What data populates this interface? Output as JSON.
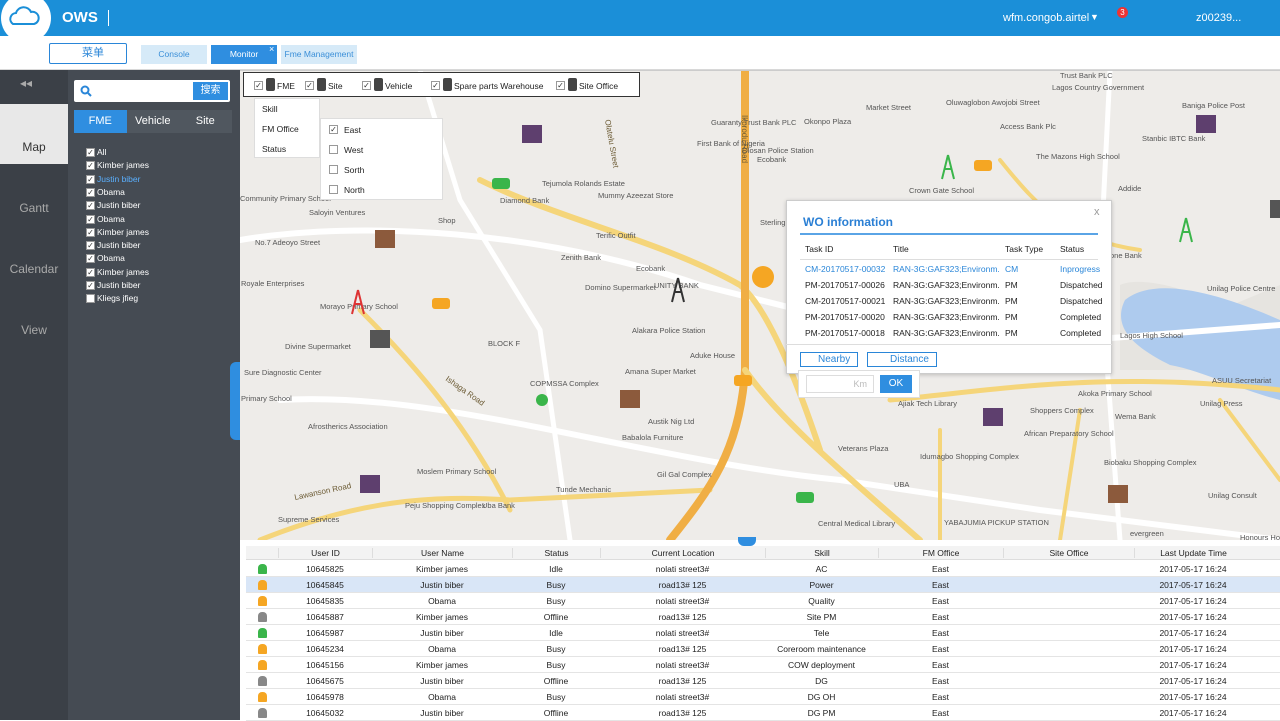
{
  "header": {
    "logo": "OWS",
    "domain": "wfm.congob.airtel",
    "badge": "3",
    "user": "z00239..."
  },
  "toolbar": {
    "menu": "菜单",
    "tabs": [
      "Console",
      "Monitor",
      "Fme Management"
    ],
    "close": "×"
  },
  "nav": [
    "Map",
    "Gantt",
    "Calendar",
    "View"
  ],
  "panel": {
    "search": "搜索",
    "tabs": [
      "FME",
      "Vehicle",
      "Site"
    ],
    "items": [
      {
        "name": "All",
        "checked": true
      },
      {
        "name": "Kimber james",
        "checked": true
      },
      {
        "name": "Justin biber",
        "checked": true
      },
      {
        "name": "Obama",
        "checked": true
      },
      {
        "name": "Justin biber",
        "checked": true
      },
      {
        "name": "Obama",
        "checked": true
      },
      {
        "name": "Kimber james",
        "checked": true
      },
      {
        "name": "Justin biber",
        "checked": true
      },
      {
        "name": "Obama",
        "checked": true
      },
      {
        "name": "Kimber james",
        "checked": true
      },
      {
        "name": "Justin biber",
        "checked": true
      },
      {
        "name": "Kliegs jfieg",
        "checked": false
      }
    ]
  },
  "filters": [
    "FME",
    "Site",
    "Vehicle",
    "Spare parts Warehouse",
    "Site Office"
  ],
  "submenu": [
    "Skill",
    "FM Office",
    "Status"
  ],
  "offices": [
    {
      "name": "East",
      "checked": true
    },
    {
      "name": "West",
      "checked": false
    },
    {
      "name": "Sorth",
      "checked": false
    },
    {
      "name": "North",
      "checked": false
    }
  ],
  "map_labels": [
    "Olosan Police Station",
    "Diamond Bank",
    "Mummy Azeezat Store",
    "Tejumola Rolands Estate",
    "Terific Outfit",
    "Zenith Bank",
    "Ecobank",
    "UNITY BANK",
    "Domino Supermarket",
    "Alakara Police Station",
    "Aduke House",
    "BLOCK F",
    "Amana Super Market",
    "COPMSSA Complex",
    "Austik Nig Ltd",
    "Babalola Furniture",
    "Gil Gal Complex",
    "Tunde Mechanic",
    "Uba Bank",
    "Moslem Primary School",
    "Peju Shopping Complex",
    "Afrostherics Association",
    "Morayo Primary School",
    "Royale Enterprises",
    "No.7 Adeoyo Street",
    "Community Primary School",
    "Saloyin Ventures",
    "Divine Supermarket",
    "Sure Diagnostic Center",
    "Primary School",
    "Supreme Services",
    "Shop",
    "Guaranty Trust Bank PLC",
    "First Bank of Nigeria",
    "Ecobank",
    "Okonpo Plaza",
    "Market Street",
    "Oluwaglobon Awojobi Street",
    "Access Bank Plc",
    "The Mazons High School",
    "Crown Gate School",
    "Trust Bank PLC",
    "Lagos Country Government",
    "Baniga Police Post",
    "Stanbic IBTC Bank",
    "Addide",
    "Sterling",
    "Veterans Plaza",
    "Ajiak Tech Library",
    "Idumagbo Shopping Complex",
    "UBA",
    "Central Medical Library",
    "YABAJUMIA PICKUP STATION",
    "Akoka Primary School",
    "Wema Bank",
    "Shoppers Complex",
    "African Preparatory School",
    "Biobaku Shopping Complex",
    "Unilag Press",
    "ASUU Secretariat",
    "Unilag Consult",
    "evergreen",
    "Honours Hours",
    "Unilag Police Centre",
    "one Bank",
    "Lagos High School",
    "Ikorodu Road",
    "Olatelu Street",
    "Ishaga Road",
    "Lawanson Road"
  ],
  "wo": {
    "title": "WO information",
    "close": "x",
    "headers": [
      "Task ID",
      "Title",
      "Task Type",
      "Status"
    ],
    "rows": [
      [
        "CM-20170517-00032",
        "RAN-3G:GAF323;Environm...",
        "CM",
        "Inprogress"
      ],
      [
        "PM-20170517-00026",
        "RAN-3G:GAF323;Environm...",
        "PM",
        "Dispatched"
      ],
      [
        "CM-20170517-00021",
        "RAN-3G:GAF323;Environm...",
        "PM",
        "Dispatched"
      ],
      [
        "PM-20170517-00020",
        "RAN-3G:GAF323;Environm...",
        "PM",
        "Completed"
      ],
      [
        "PM-20170517-00018",
        "RAN-3G:GAF323;Environm...",
        "PM",
        "Completed"
      ]
    ],
    "nearby": "Nearby",
    "distance": "Distance",
    "unit": "Km",
    "ok": "OK"
  },
  "table": {
    "headers": [
      "User ID",
      "User Name",
      "Status",
      "Current Location",
      "Skill",
      "FM Office",
      "Site Office",
      "Last Update Time"
    ],
    "rows": [
      [
        "10645825",
        "Kimber james",
        "Idle",
        "nolati street3#",
        "AC",
        "East",
        "",
        "2017-05-17 16:24"
      ],
      [
        "10645845",
        "Justin biber",
        "Busy",
        "road13# 125",
        "Power",
        "East",
        "",
        "2017-05-17 16:24"
      ],
      [
        "10645835",
        "Obama",
        "Busy",
        "nolati street3#",
        "Quality",
        "East",
        "",
        "2017-05-17 16:24"
      ],
      [
        "10645887",
        "Kimber james",
        "Offline",
        "road13# 125",
        "Site PM",
        "East",
        "",
        "2017-05-17 16:24"
      ],
      [
        "10645987",
        "Justin biber",
        "Idle",
        "nolati street3#",
        "Tele",
        "East",
        "",
        "2017-05-17 16:24"
      ],
      [
        "10645234",
        "Obama",
        "Busy",
        "road13# 125",
        "Coreroom maintenance",
        "East",
        "",
        "2017-05-17 16:24"
      ],
      [
        "10645156",
        "Kimber james",
        "Busy",
        "nolati street3#",
        "COW deployment",
        "East",
        "",
        "2017-05-17 16:24"
      ],
      [
        "10645675",
        "Justin biber",
        "Offline",
        "road13# 125",
        "DG",
        "East",
        "",
        "2017-05-17 16:24"
      ],
      [
        "10645978",
        "Obama",
        "Busy",
        "nolati street3#",
        "DG OH",
        "East",
        "",
        "2017-05-17 16:24"
      ],
      [
        "10645032",
        "Justin biber",
        "Offline",
        "road13# 125",
        "DG PM",
        "East",
        "",
        "2017-05-17 16:24"
      ]
    ]
  }
}
